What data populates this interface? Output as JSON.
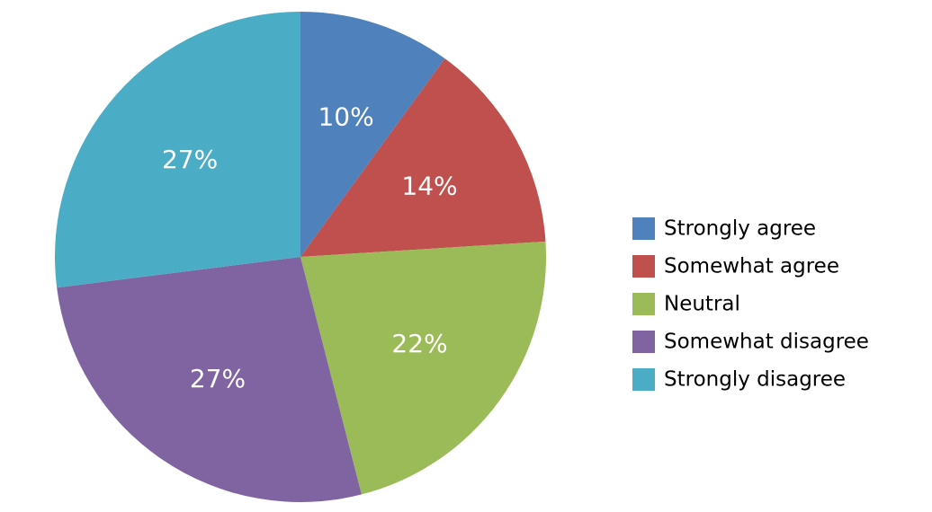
{
  "chart_data": {
    "type": "pie",
    "title": "",
    "categories": [
      "Strongly agree",
      "Somewhat agree",
      "Neutral",
      "Somewhat disagree",
      "Strongly disagree"
    ],
    "values": [
      10,
      14,
      22,
      27,
      27
    ],
    "labels": [
      "10%",
      "14%",
      "22%",
      "27%",
      "27%"
    ],
    "colors": [
      "#4f81bd",
      "#c0504d",
      "#9bbb59",
      "#8064a2",
      "#4bacc6"
    ],
    "legend": {
      "position": "right",
      "entries": [
        "Strongly agree",
        "Somewhat agree",
        "Neutral",
        "Somewhat disagree",
        "Strongly disagree"
      ]
    }
  }
}
